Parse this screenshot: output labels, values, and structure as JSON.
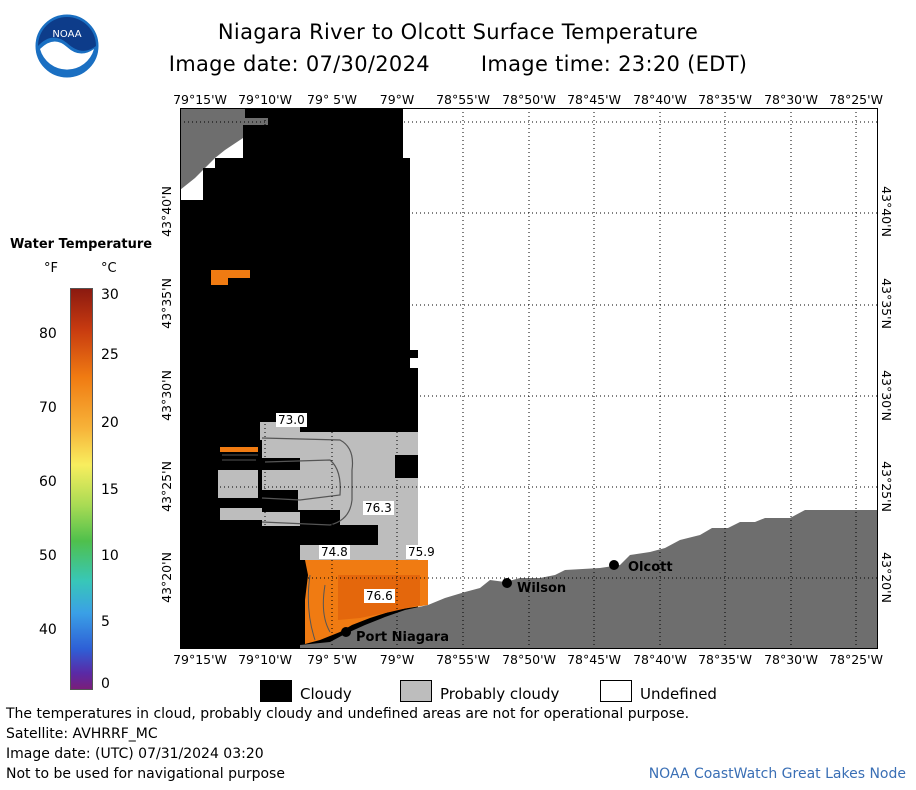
{
  "title": "Niagara River to Olcott Surface Temperature",
  "image_date": "Image date: 07/30/2024",
  "image_time": "Image time: 23:20 (EDT)",
  "legend": {
    "title": "Water Temperature",
    "unit_f": "°F",
    "unit_c": "°C",
    "f_ticks": [
      "80",
      "70",
      "60",
      "50",
      "40"
    ],
    "c_ticks": [
      "30",
      "25",
      "20",
      "15",
      "10",
      "5",
      "0"
    ]
  },
  "longitude_labels": [
    "79°15'W",
    "79°10'W",
    "79° 5'W",
    "79°W",
    "78°55'W",
    "78°50'W",
    "78°45'W",
    "78°40'W",
    "78°35'W",
    "78°30'W",
    "78°25'W"
  ],
  "latitude_labels": [
    "43°40'N",
    "43°35'N",
    "43°30'N",
    "43°25'N",
    "43°20'N"
  ],
  "places": [
    "Olcott",
    "Wilson",
    "Port Niagara"
  ],
  "temperature_labels": [
    "73.0",
    "76.3",
    "74.8",
    "75.9",
    "76.6"
  ],
  "key": {
    "cloudy": "Cloudy",
    "probably_cloudy": "Probably cloudy",
    "undefined": "Undefined"
  },
  "notes": {
    "line1": "The temperatures in cloud, probably cloudy and undefined areas are not for operational purpose.",
    "line2": "Satellite: AVHRRF_MC",
    "line3": "Image date: (UTC) 07/31/2024  03:20",
    "line4": "Not to be used for navigational purpose"
  },
  "credit": "NOAA CoastWatch Great Lakes Node",
  "colors": {
    "cloudy": "#000000",
    "probably_cloudy": "#bdbdbd",
    "land": "#6e6e6e",
    "warm_water": "#f07b12",
    "grid": "#000000"
  },
  "icons": [
    "noaa-logo-icon",
    "location-dot-icon"
  ]
}
